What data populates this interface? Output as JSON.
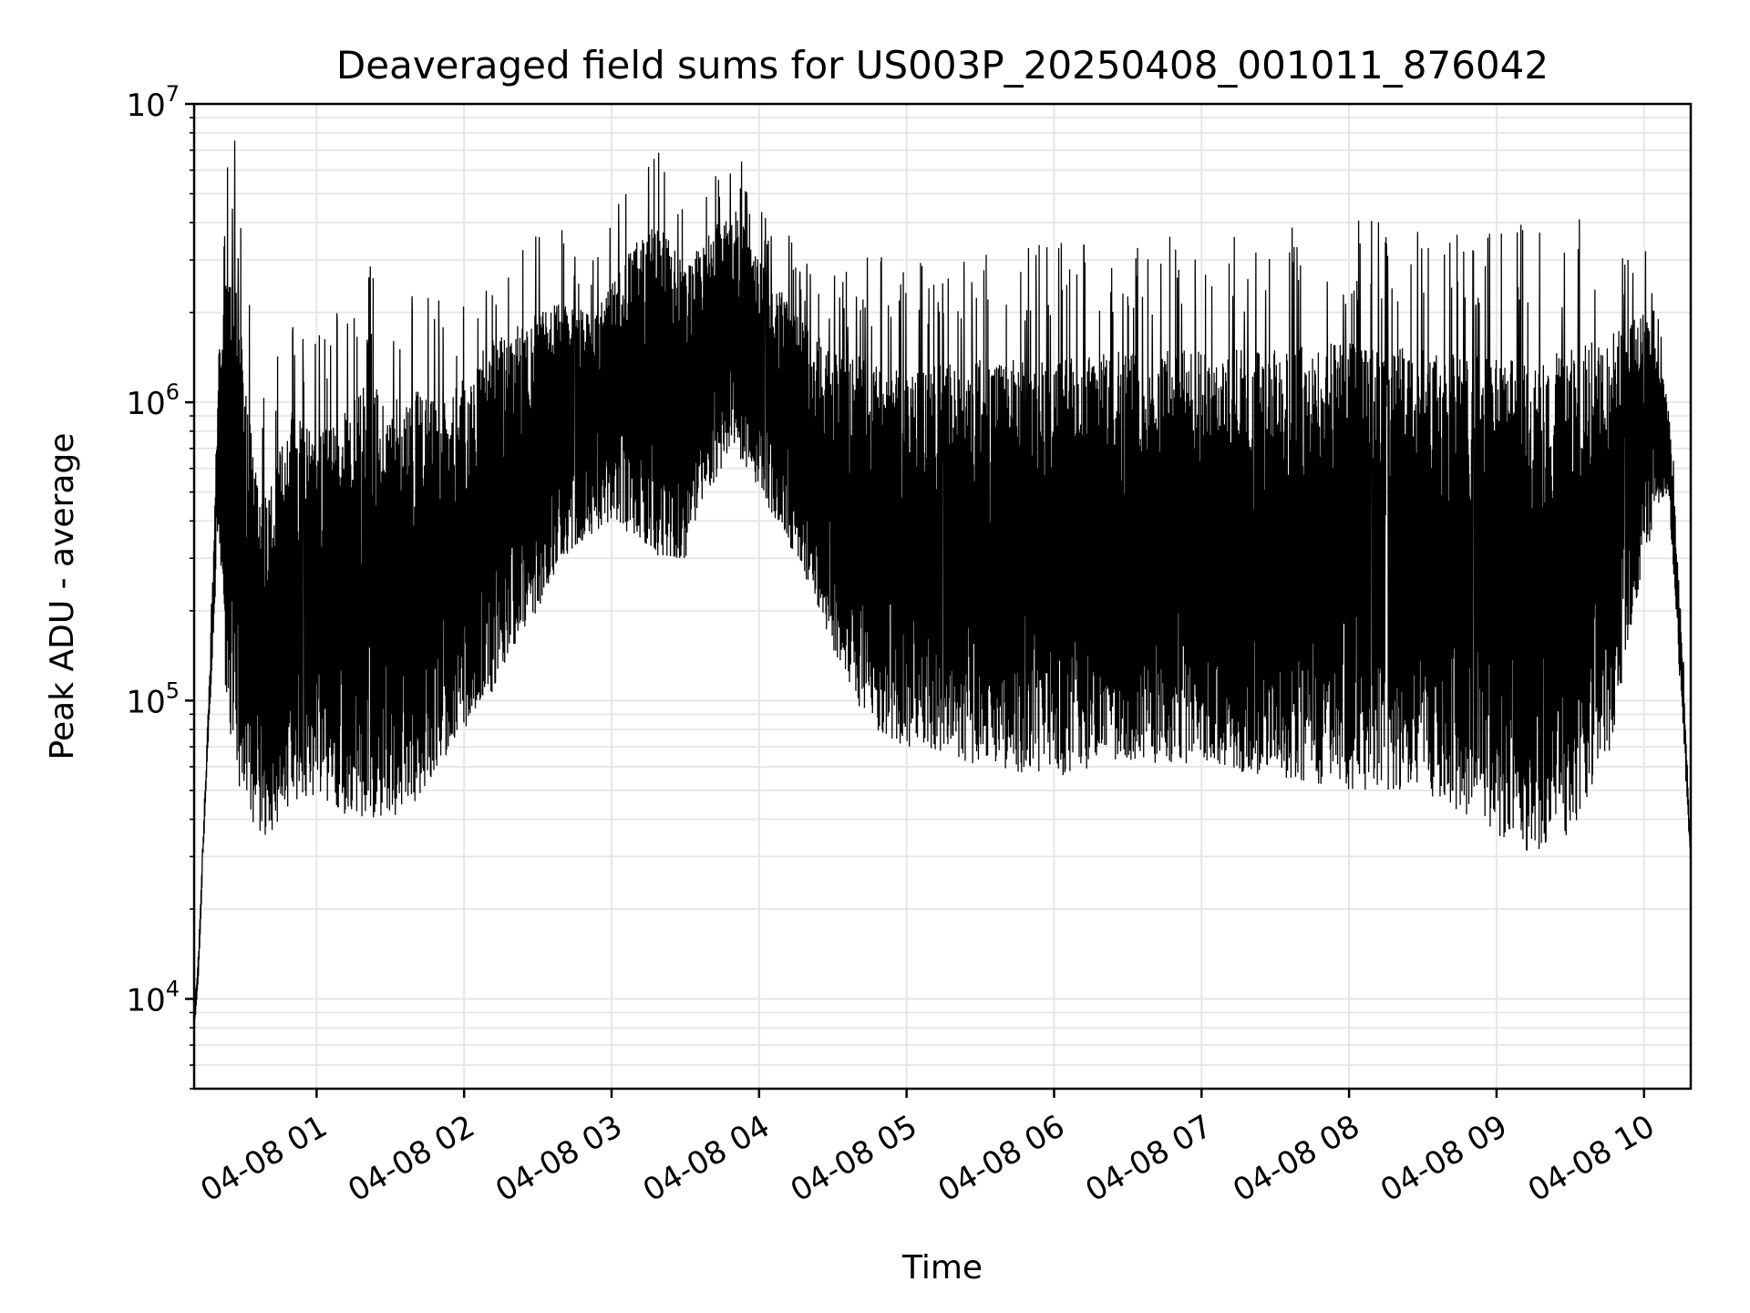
{
  "chart_data": {
    "type": "line",
    "title": "Deaveraged field sums for US003P_20250408_001011_876042",
    "xlabel": "Time",
    "ylabel": "Peak ADU - average",
    "y_scale": "log",
    "ylim": [
      5000,
      10000000
    ],
    "xlim": [
      "2025-04-08T00:10:11",
      "2025-04-08T10:19:00"
    ],
    "x_ticks": [
      "04-08 01",
      "04-08 02",
      "04-08 03",
      "04-08 04",
      "04-08 05",
      "04-08 06",
      "04-08 07",
      "04-08 08",
      "04-08 09",
      "04-08 10"
    ],
    "y_ticks": [
      {
        "base": "10",
        "exp": "4",
        "value": 10000
      },
      {
        "base": "10",
        "exp": "5",
        "value": 100000
      },
      {
        "base": "10",
        "exp": "6",
        "value": 1000000
      },
      {
        "base": "10",
        "exp": "7",
        "value": 10000000
      }
    ],
    "grid": true,
    "line_color": "#000000",
    "series": [
      {
        "x": [
          "2025-04-08T00:10:11",
          "2025-04-08T00:12:00",
          "2025-04-08T00:15:00",
          "2025-04-08T00:18:00",
          "2025-04-08T00:20:00",
          "2025-04-08T00:21:30",
          "2025-04-08T00:24:00",
          "2025-04-08T00:27:00",
          "2025-04-08T00:30:00",
          "2025-04-08T00:35:00",
          "2025-04-08T00:40:00",
          "2025-04-08T00:45:00",
          "2025-04-08T00:50:00",
          "2025-04-08T00:55:00",
          "2025-04-08T01:00:00",
          "2025-04-08T01:10:00",
          "2025-04-08T01:20:00",
          "2025-04-08T01:30:00",
          "2025-04-08T01:40:00",
          "2025-04-08T01:50:00",
          "2025-04-08T02:00:00",
          "2025-04-08T02:10:00",
          "2025-04-08T02:20:00",
          "2025-04-08T02:30:00",
          "2025-04-08T02:40:00",
          "2025-04-08T02:50:00",
          "2025-04-08T03:00:00",
          "2025-04-08T03:10:00",
          "2025-04-08T03:20:00",
          "2025-04-08T03:30:00",
          "2025-04-08T03:40:00",
          "2025-04-08T03:50:00",
          "2025-04-08T04:00:00",
          "2025-04-08T04:15:00",
          "2025-04-08T04:30:00",
          "2025-04-08T04:45:00",
          "2025-04-08T05:00:00",
          "2025-04-08T05:30:00",
          "2025-04-08T06:00:00",
          "2025-04-08T06:30:00",
          "2025-04-08T07:00:00",
          "2025-04-08T07:30:00",
          "2025-04-08T08:00:00",
          "2025-04-08T08:30:00",
          "2025-04-08T09:00:00",
          "2025-04-08T09:15:00",
          "2025-04-08T09:30:00",
          "2025-04-08T09:45:00",
          "2025-04-08T10:00:00",
          "2025-04-08T10:05:00",
          "2025-04-08T10:10:00",
          "2025-04-08T10:15:00",
          "2025-04-08T10:19:00"
        ],
        "y_upper": [
          9000,
          15000,
          60000,
          300000,
          1400000,
          1800000,
          3000000,
          2500000,
          1500000,
          600000,
          500000,
          700000,
          1000000,
          900000,
          800000,
          900000,
          1200000,
          1000000,
          1100000,
          1000000,
          1200000,
          1600000,
          1800000,
          2000000,
          2200000,
          2000000,
          2500000,
          3500000,
          4000000,
          2800000,
          3800000,
          4500000,
          3000000,
          2000000,
          1500000,
          1400000,
          1300000,
          1400000,
          1400000,
          1500000,
          1500000,
          1500000,
          1600000,
          1500000,
          1400000,
          1400000,
          1500000,
          1700000,
          2000000,
          1500000,
          1000000,
          200000,
          30000
        ],
        "y_lower": [
          7500,
          12000,
          50000,
          150000,
          400000,
          200000,
          70000,
          50000,
          40000,
          35000,
          35000,
          40000,
          45000,
          40000,
          50000,
          40000,
          40000,
          40000,
          45000,
          60000,
          80000,
          100000,
          150000,
          200000,
          300000,
          350000,
          400000,
          350000,
          300000,
          300000,
          500000,
          700000,
          500000,
          300000,
          150000,
          80000,
          70000,
          60000,
          55000,
          60000,
          60000,
          55000,
          50000,
          50000,
          35000,
          30000,
          35000,
          60000,
          300000,
          400000,
          500000,
          100000,
          28000
        ]
      }
    ]
  }
}
